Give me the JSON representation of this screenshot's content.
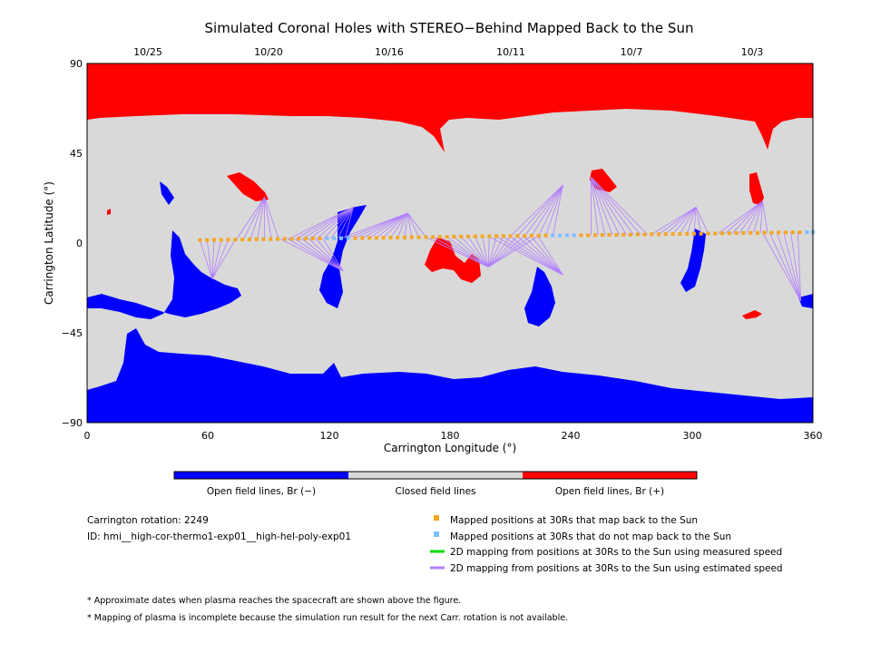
{
  "chart_data": {
    "type": "scatter",
    "title": "Simulated Coronal Holes with STEREO−Behind Mapped Back to the Sun",
    "xlabel": "Carrington Longitude (°)",
    "ylabel": "Carrington Latitude (°)",
    "xlim": [
      0,
      360
    ],
    "ylim": [
      -90,
      90
    ],
    "x_ticks": [
      "0",
      "60",
      "120",
      "180",
      "240",
      "300",
      "360"
    ],
    "y_ticks": [
      "90",
      "45",
      "0",
      "−45",
      "−90"
    ],
    "top_axis": {
      "labels": [
        "10/25",
        "10/20",
        "10/16",
        "10/11",
        "10/7",
        "10/3"
      ],
      "longitudes": [
        30,
        90,
        150,
        210,
        270,
        330
      ]
    },
    "colors": {
      "open_negative": "#0000ff",
      "closed": "#d9d9d9",
      "open_positive": "#ff0000",
      "mapped_back": "#f5a623",
      "not_mapped": "#7fbfff",
      "measured_speed": "#00dd00",
      "estimated_speed": "#b27fff"
    },
    "series": [
      {
        "name": "Mapped positions at 30Rs that map back to the Sun",
        "marker": "square",
        "points": [
          [
            56,
            1.5
          ],
          [
            59.5,
            1.5
          ],
          [
            63,
            1.6
          ],
          [
            66.5,
            1.6
          ],
          [
            70,
            1.7
          ],
          [
            73.5,
            1.7
          ],
          [
            77,
            1.8
          ],
          [
            80.5,
            1.8
          ],
          [
            84,
            1.9
          ],
          [
            87.5,
            1.9
          ],
          [
            91,
            2.0
          ],
          [
            94.5,
            2.0
          ],
          [
            98,
            2.1
          ],
          [
            101.5,
            2.1
          ],
          [
            105,
            2.2
          ],
          [
            108.5,
            2.2
          ],
          [
            112,
            2.3
          ],
          [
            115.5,
            2.3
          ],
          [
            133,
            2.5
          ],
          [
            136.5,
            2.5
          ],
          [
            140,
            2.6
          ],
          [
            143.5,
            2.6
          ],
          [
            147,
            2.7
          ],
          [
            150.5,
            2.7
          ],
          [
            154,
            2.8
          ],
          [
            157.5,
            2.8
          ],
          [
            161,
            2.9
          ],
          [
            164.5,
            2.9
          ],
          [
            168,
            3.0
          ],
          [
            171.5,
            3.0
          ],
          [
            175,
            3.1
          ],
          [
            178.5,
            3.1
          ],
          [
            182,
            3.2
          ],
          [
            185.5,
            3.2
          ],
          [
            189,
            3.3
          ],
          [
            192.5,
            3.3
          ],
          [
            196,
            3.4
          ],
          [
            199.5,
            3.4
          ],
          [
            203,
            3.5
          ],
          [
            206.5,
            3.5
          ],
          [
            210,
            3.5
          ],
          [
            213.5,
            3.6
          ],
          [
            217,
            3.6
          ],
          [
            220.5,
            3.7
          ],
          [
            224,
            3.7
          ],
          [
            227.5,
            3.8
          ],
          [
            245,
            3.9
          ],
          [
            248.5,
            3.9
          ],
          [
            252,
            4.0
          ],
          [
            255.5,
            4.0
          ],
          [
            259,
            4.1
          ],
          [
            262.5,
            4.1
          ],
          [
            266,
            4.2
          ],
          [
            269.5,
            4.2
          ],
          [
            273,
            4.3
          ],
          [
            276.5,
            4.3
          ],
          [
            280,
            4.4
          ],
          [
            283.5,
            4.4
          ],
          [
            287,
            4.5
          ],
          [
            290.5,
            4.5
          ],
          [
            294,
            4.6
          ],
          [
            297.5,
            4.6
          ],
          [
            301,
            4.7
          ],
          [
            304.5,
            4.7
          ],
          [
            308,
            4.8
          ],
          [
            311.5,
            4.8
          ],
          [
            315,
            4.9
          ],
          [
            318.5,
            4.9
          ],
          [
            322,
            5.0
          ],
          [
            325.5,
            5.0
          ],
          [
            329,
            5.1
          ],
          [
            332.5,
            5.1
          ],
          [
            336,
            5.2
          ],
          [
            339.5,
            5.2
          ],
          [
            343,
            5.3
          ],
          [
            346.5,
            5.3
          ],
          [
            350,
            5.4
          ],
          [
            353.5,
            5.4
          ]
        ]
      },
      {
        "name": "Mapped positions at 30Rs that do not map back to the Sun",
        "marker": "square",
        "points": [
          [
            119,
            2.4
          ],
          [
            122.5,
            2.4
          ],
          [
            126,
            2.4
          ],
          [
            129.5,
            2.5
          ],
          [
            231,
            3.8
          ],
          [
            234.5,
            3.8
          ],
          [
            238,
            3.9
          ],
          [
            241.5,
            3.9
          ],
          [
            357,
            5.5
          ],
          [
            360,
            5.5
          ]
        ]
      },
      {
        "name": "2D mapping from positions at 30Rs to the Sun using measured speed",
        "marker": "line",
        "lines": []
      },
      {
        "name": "2D mapping from positions at 30Rs to the Sun using estimated speed",
        "marker": "line",
        "lines": [
          {
            "target": [
              62,
              -18
            ],
            "from_x": [
              56,
              74
            ]
          },
          {
            "target": [
              88,
              23
            ],
            "from_x": [
              74,
              96
            ]
          },
          {
            "target": [
              127,
              -14
            ],
            "from_x": [
              96,
              119
            ]
          },
          {
            "target": [
              132,
              18
            ],
            "from_x": [
              100,
              129
            ]
          },
          {
            "target": [
              159,
              15
            ],
            "from_x": [
              126,
              168
            ]
          },
          {
            "target": [
              199,
              -12
            ],
            "from_x": [
              168,
              224
            ]
          },
          {
            "target": [
              236,
              -16
            ],
            "from_x": [
              199,
              224
            ]
          },
          {
            "target": [
              236,
              29
            ],
            "from_x": [
              210,
              232
            ]
          },
          {
            "target": [
              250,
              33
            ],
            "from_x": [
              250,
              280
            ]
          },
          {
            "target": [
              302,
              18
            ],
            "from_x": [
              280,
              310
            ]
          },
          {
            "target": [
              335,
              21
            ],
            "from_x": [
              313,
              338
            ]
          },
          {
            "target": [
              354,
              -29
            ],
            "from_x": [
              335,
              354
            ]
          }
        ]
      }
    ],
    "colorbar": {
      "labels": [
        "Open field lines, Br (−)",
        "Closed field lines",
        "Open field lines, Br (+)"
      ]
    },
    "info": {
      "rotation": "Carrington rotation: 2249",
      "id": "ID: hmi__high-cor-thermo1-exp01__high-hel-poly-exp01"
    },
    "notes": [
      "* Approximate dates when plasma reaches the spacecraft are shown above the figure.",
      "* Mapping of plasma is incomplete because the simulation run result for the next Carr. rotation is not available."
    ]
  }
}
